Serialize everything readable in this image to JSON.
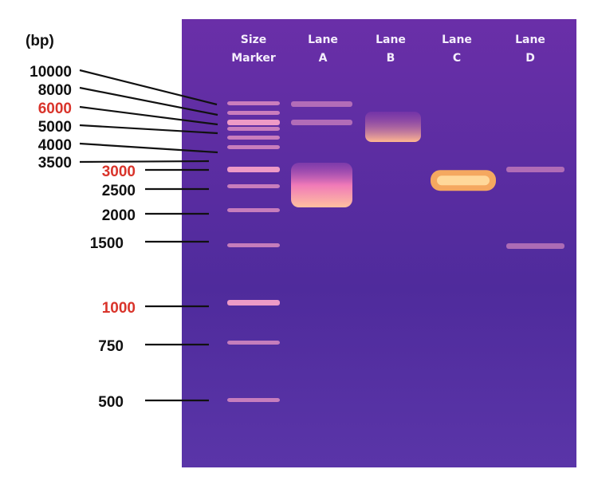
{
  "unit_label": "(bp)",
  "colors": {
    "gel": "#5a2aa0",
    "highlight_label": "#d9342b",
    "label": "#111111",
    "band": "#f6a0c8",
    "bright_band": "#ffd89a"
  },
  "marker": {
    "title_line1": "Size",
    "title_line2": "Marker",
    "ladder": [
      {
        "bp": "10000",
        "highlight": false
      },
      {
        "bp": "8000",
        "highlight": false
      },
      {
        "bp": "6000",
        "highlight": true
      },
      {
        "bp": "5000",
        "highlight": false
      },
      {
        "bp": "4000",
        "highlight": false
      },
      {
        "bp": "3500",
        "highlight": false
      },
      {
        "bp": "3000",
        "highlight": true
      },
      {
        "bp": "2500",
        "highlight": false
      },
      {
        "bp": "2000",
        "highlight": false
      },
      {
        "bp": "1500",
        "highlight": false
      },
      {
        "bp": "1000",
        "highlight": true
      },
      {
        "bp": "750",
        "highlight": false
      },
      {
        "bp": "500",
        "highlight": false
      }
    ]
  },
  "lanes": [
    {
      "line1": "Lane",
      "line2": "A",
      "bands": [
        {
          "bp": 2500,
          "intensity": "bright-smear"
        },
        {
          "bp": 10000,
          "intensity": "faint"
        },
        {
          "bp": 6000,
          "intensity": "faint"
        }
      ]
    },
    {
      "line1": "Lane",
      "line2": "B",
      "bands": [
        {
          "bp": 5000,
          "intensity": "medium"
        }
      ]
    },
    {
      "line1": "Lane",
      "line2": "C",
      "bands": [
        {
          "bp": 2700,
          "intensity": "bright"
        }
      ]
    },
    {
      "line1": "Lane",
      "line2": "D",
      "bands": [
        {
          "bp": 3000,
          "intensity": "faint"
        },
        {
          "bp": 1500,
          "intensity": "faint"
        }
      ]
    }
  ]
}
